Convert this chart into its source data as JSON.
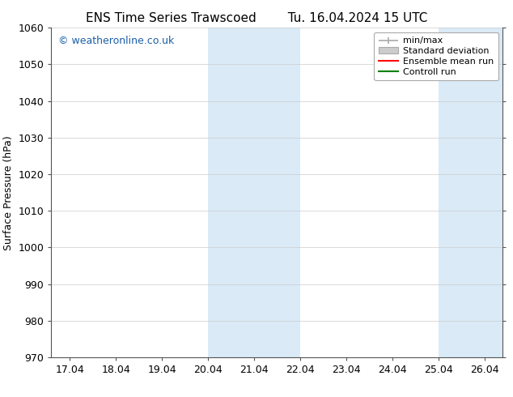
{
  "title_left": "ENS Time Series Trawscoed",
  "title_right": "Tu. 16.04.2024 15 UTC",
  "ylabel": "Surface Pressure (hPa)",
  "ylim": [
    970,
    1060
  ],
  "yticks": [
    970,
    980,
    990,
    1000,
    1010,
    1020,
    1030,
    1040,
    1050,
    1060
  ],
  "xlim_start": 16.6,
  "xlim_end": 26.4,
  "xtick_labels": [
    "17.04",
    "18.04",
    "19.04",
    "20.04",
    "21.04",
    "22.04",
    "23.04",
    "24.04",
    "25.04",
    "26.04"
  ],
  "xtick_positions": [
    17.0,
    18.0,
    19.0,
    20.0,
    21.0,
    22.0,
    23.0,
    24.0,
    25.0,
    26.0
  ],
  "shaded_regions": [
    {
      "xmin": 20.0,
      "xmax": 22.0
    },
    {
      "xmin": 25.0,
      "xmax": 26.4
    }
  ],
  "shade_color": "#daeaf7",
  "watermark_text": "© weatheronline.co.uk",
  "watermark_color": "#1a5fa8",
  "legend_items": [
    {
      "label": "min/max"
    },
    {
      "label": "Standard deviation"
    },
    {
      "label": "Ensemble mean run"
    },
    {
      "label": "Controll run"
    }
  ],
  "legend_line_colors": [
    "#aaaaaa",
    "#cccccc",
    "#ff0000",
    "#008000"
  ],
  "background_color": "#ffffff",
  "grid_color": "#cccccc",
  "spine_color": "#555555",
  "title_fontsize": 11,
  "label_fontsize": 9,
  "tick_fontsize": 9,
  "legend_fontsize": 8
}
